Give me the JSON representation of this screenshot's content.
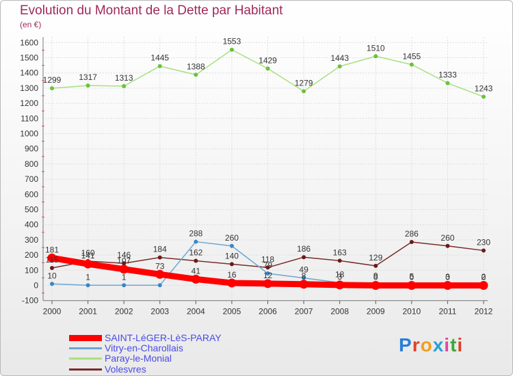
{
  "title": "Evolution du Montant de la Dette par Habitant",
  "subtitle": "(en €)",
  "logo": {
    "text": "Proxiti",
    "letter_colors": [
      "#2a7fd4",
      "#e0402a",
      "#f0a020",
      "#2a9fd4",
      "#e04a9a",
      "#3aaa3a",
      "#e0402a"
    ]
  },
  "chart_data": {
    "type": "line",
    "categories": [
      "2000",
      "2001",
      "2002",
      "2003",
      "2004",
      "2005",
      "2006",
      "2007",
      "2008",
      "2009",
      "2010",
      "2011",
      "2012"
    ],
    "y_ticks": [
      "-100",
      "0",
      "100",
      "200",
      "300",
      "400",
      "500",
      "600",
      "700",
      "800",
      "900",
      "1000",
      "1100",
      "1200",
      "1300",
      "1400",
      "1500",
      "1600"
    ],
    "ylim": [
      -100,
      1600
    ],
    "grid": true,
    "legend_position": "bottom-left",
    "series": [
      {
        "name": "SAINT-LéGER-LèS-PARAY",
        "color": "#ff0000",
        "marker_color": "#ff0000",
        "values": [
          181,
          141,
          107,
          73,
          41,
          16,
          12,
          8,
          3,
          0,
          0,
          0,
          0
        ],
        "labels": [
          "181",
          "141",
          "107",
          "73",
          "41",
          "16",
          "12",
          "8",
          "3",
          "0",
          "0",
          "0",
          "0"
        ]
      },
      {
        "name": "Vitry-en-Charollais",
        "color": "#6aa6d2",
        "marker_color": "#3a86c8",
        "values": [
          10,
          1,
          1,
          1,
          288,
          260,
          79,
          49,
          18,
          9,
          5,
          3,
          2
        ],
        "labels": [
          "10",
          "1",
          "1",
          "",
          "288",
          "260",
          "79",
          "49",
          "18",
          "9",
          "5",
          "3",
          "2"
        ]
      },
      {
        "name": "Paray-le-Monial",
        "color": "#a8e080",
        "marker_color": "#6ac23a",
        "values": [
          1299,
          1317,
          1313,
          1445,
          1388,
          1553,
          1429,
          1279,
          1443,
          1510,
          1455,
          1333,
          1243
        ],
        "labels": [
          "1299",
          "1317",
          "1313",
          "1445",
          "1388",
          "1553",
          "1429",
          "1279",
          "1443",
          "1510",
          "1455",
          "1333",
          "1243"
        ]
      },
      {
        "name": "Volesvres",
        "color": "#7a2a2a",
        "marker_color": "#6a1a1a",
        "values": [
          115,
          160,
          146,
          184,
          162,
          140,
          118,
          186,
          163,
          129,
          286,
          260,
          230
        ],
        "labels": [
          "115",
          "160",
          "146",
          "184",
          "162",
          "140",
          "118",
          "186",
          "163",
          "129",
          "286",
          "260",
          "230"
        ]
      }
    ]
  }
}
